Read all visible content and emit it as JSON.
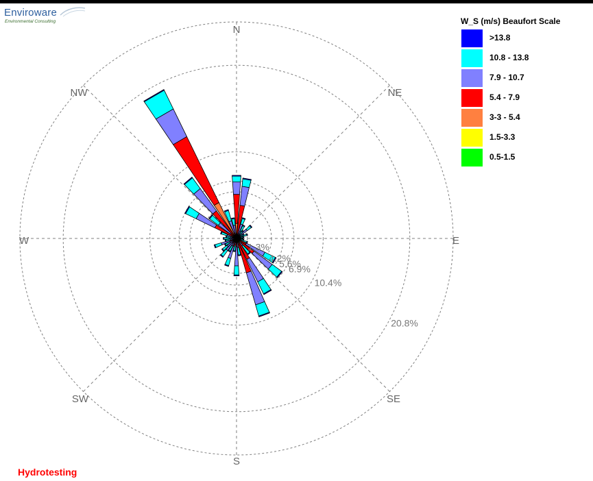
{
  "logo": {
    "main": "Enviroware",
    "sub": "Environmental Consulting"
  },
  "footer": {
    "label": "Hydrotesting"
  },
  "chart_data": {
    "type": "windrose",
    "legend": {
      "title": "W_S (m/s) Beaufort Scale",
      "placement": "top-right",
      "bins": [
        {
          "label": ">13.8",
          "color": "#0000ff"
        },
        {
          "label": "10.8 - 13.8",
          "color": "#00ffff"
        },
        {
          "label": "7.9 - 10.7",
          "color": "#8080ff"
        },
        {
          "label": "5.4 - 7.9",
          "color": "#ff0000"
        },
        {
          "label": "3-3 - 5.4",
          "color": "#ff8040"
        },
        {
          "label": "1.5-3.3",
          "color": "#ffff00"
        },
        {
          "label": "0.5-1.5",
          "color": "#00ff00"
        }
      ]
    },
    "directions": [
      "N",
      "NE",
      "E",
      "SE",
      "S",
      "SW",
      "W",
      "NW"
    ],
    "rings": [
      {
        "value": 1.3,
        "label": "1.3%"
      },
      {
        "value": 4.2,
        "label": "4.2%"
      },
      {
        "value": 5.6,
        "label": "5.6%"
      },
      {
        "value": 6.9,
        "label": "6.9%"
      },
      {
        "value": 10.4,
        "label": "10.4%"
      },
      {
        "value": 20.8,
        "label": "20.8%"
      }
    ],
    "max_percent": 26,
    "grid": true,
    "sector_width_deg": 8,
    "sectors": [
      {
        "angle": 0,
        "bands": [
          0.1,
          0.7,
          1.5,
          3.5,
          1.8,
          0.0,
          0.0
        ]
      },
      {
        "angle": 10,
        "bands": [
          0.1,
          0.9,
          2.3,
          3.5,
          0.5,
          0.0,
          0.0
        ]
      },
      {
        "angle": 20,
        "bands": [
          0.1,
          0.7,
          1.2,
          0.6,
          0.0,
          0.0,
          0.0
        ]
      },
      {
        "angle": 30,
        "bands": [
          0.1,
          0.7,
          0.8,
          0.2,
          0.0,
          0.0,
          0.0
        ]
      },
      {
        "angle": 40,
        "bands": [
          0.1,
          0.5,
          0.6,
          0.0,
          0.0,
          0.0,
          0.0
        ]
      },
      {
        "angle": 50,
        "bands": [
          0.1,
          0.6,
          1.2,
          0.4,
          0.0,
          0.0,
          0.0
        ]
      },
      {
        "angle": 60,
        "bands": [
          0.1,
          0.4,
          0.5,
          0.0,
          0.0,
          0.0,
          0.0
        ]
      },
      {
        "angle": 70,
        "bands": [
          0.1,
          0.5,
          0.7,
          0.1,
          0.0,
          0.0,
          0.0
        ]
      },
      {
        "angle": 80,
        "bands": [
          0.1,
          0.4,
          0.4,
          0.0,
          0.0,
          0.0,
          0.0
        ]
      },
      {
        "angle": 90,
        "bands": [
          0.1,
          0.3,
          0.4,
          0.0,
          0.0,
          0.0,
          0.0
        ]
      },
      {
        "angle": 100,
        "bands": [
          0.1,
          0.4,
          0.4,
          0.0,
          0.0,
          0.0,
          0.0
        ]
      },
      {
        "angle": 110,
        "bands": [
          0.1,
          0.7,
          0.6,
          0.0,
          0.0,
          0.0,
          0.0
        ]
      },
      {
        "angle": 120,
        "bands": [
          0.1,
          1.4,
          2.5,
          1.3,
          0.0,
          0.0,
          0.0
        ]
      },
      {
        "angle": 130,
        "bands": [
          0.1,
          1.4,
          2.7,
          1.8,
          0.8,
          0.0,
          0.0
        ]
      },
      {
        "angle": 140,
        "bands": [
          0.1,
          1.2,
          1.0,
          0.1,
          0.0,
          0.0,
          0.0
        ]
      },
      {
        "angle": 150,
        "bands": [
          0.1,
          1.6,
          3.0,
          2.2,
          0.6,
          0.0,
          0.0
        ]
      },
      {
        "angle": 160,
        "bands": [
          0.1,
          1.4,
          4.0,
          3.5,
          0.8,
          0.0,
          0.0
        ]
      },
      {
        "angle": 170,
        "bands": [
          0.1,
          0.9,
          1.0,
          0.1,
          0.0,
          0.0,
          0.0
        ]
      },
      {
        "angle": 180,
        "bands": [
          0.1,
          1.1,
          2.3,
          0.8,
          0.2,
          0.0,
          0.0
        ]
      },
      {
        "angle": 190,
        "bands": [
          0.1,
          0.7,
          0.7,
          0.1,
          0.0,
          0.0,
          0.0
        ]
      },
      {
        "angle": 200,
        "bands": [
          0.1,
          0.9,
          1.5,
          0.9,
          0.1,
          0.0,
          0.0
        ]
      },
      {
        "angle": 210,
        "bands": [
          0.1,
          0.7,
          0.9,
          0.1,
          0.0,
          0.0,
          0.0
        ]
      },
      {
        "angle": 220,
        "bands": [
          0.1,
          0.9,
          1.1,
          0.5,
          0.2,
          0.0,
          0.0
        ]
      },
      {
        "angle": 230,
        "bands": [
          0.1,
          0.7,
          0.9,
          0.4,
          0.1,
          0.0,
          0.0
        ]
      },
      {
        "angle": 240,
        "bands": [
          0.1,
          0.6,
          0.7,
          0.2,
          0.0,
          0.0,
          0.0
        ]
      },
      {
        "angle": 250,
        "bands": [
          0.1,
          0.8,
          1.1,
          0.6,
          0.2,
          0.0,
          0.0
        ]
      },
      {
        "angle": 260,
        "bands": [
          0.1,
          0.6,
          0.6,
          0.1,
          0.0,
          0.0,
          0.0
        ]
      },
      {
        "angle": 270,
        "bands": [
          0.1,
          0.6,
          0.7,
          0.2,
          0.0,
          0.0,
          0.0
        ]
      },
      {
        "angle": 280,
        "bands": [
          0.1,
          0.5,
          0.6,
          0.1,
          0.0,
          0.0,
          0.0
        ]
      },
      {
        "angle": 290,
        "bands": [
          0.1,
          0.7,
          1.0,
          0.2,
          0.0,
          0.0,
          0.0
        ]
      },
      {
        "angle": 300,
        "bands": [
          0.1,
          1.4,
          2.5,
          2.3,
          0.6,
          0.0,
          0.0
        ]
      },
      {
        "angle": 310,
        "bands": [
          0.1,
          1.3,
          1.8,
          0.8,
          0.1,
          0.0,
          0.0
        ]
      },
      {
        "angle": 320,
        "bands": [
          0.1,
          1.6,
          3.3,
          3.8,
          0.3,
          0.0,
          0.0
        ]
      },
      {
        "angle": 330,
        "bands": [
          0.1,
          2.5,
          3.7,
          8.8,
          4.8,
          0.0,
          0.0
        ]
      },
      {
        "angle": 340,
        "bands": [
          0.1,
          1.3,
          1.5,
          0.7,
          0.0,
          0.0,
          0.0
        ]
      },
      {
        "angle": 350,
        "bands": [
          0.1,
          0.8,
          1.1,
          0.5,
          0.0,
          0.0,
          0.0
        ]
      }
    ]
  }
}
